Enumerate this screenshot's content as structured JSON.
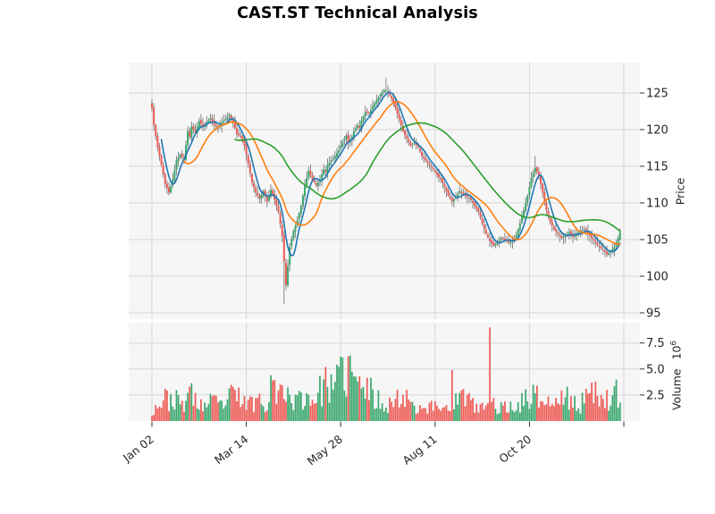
{
  "chart_data": {
    "type": "candlestick+volume_bar",
    "title": "CAST.ST Technical Analysis",
    "ylabel_price": "Price",
    "ylabel_volume": "Volume",
    "volume_exponent_base": "10",
    "volume_exponent_power": "6",
    "price_ticks": [
      95,
      100,
      105,
      110,
      115,
      120,
      125
    ],
    "volume_ticks_millions": [
      "2.5",
      "5.0",
      "7.5"
    ],
    "x_ticks": {
      "days": [
        0,
        50,
        100,
        150,
        200,
        250
      ],
      "labels": [
        "Jan 02",
        "Mar 14",
        "May 28",
        "Aug 11",
        "Oct 20",
        ""
      ]
    },
    "n_days": 249,
    "price_ylim": [
      94,
      129.2
    ],
    "volume_ylim_millions": [
      0,
      9.5
    ],
    "grid": true,
    "first_open": 123.6,
    "close_keypoints": [
      [
        0,
        123.0
      ],
      [
        1,
        120.6
      ],
      [
        3,
        117.6
      ],
      [
        5,
        115.2
      ],
      [
        7,
        112.6
      ],
      [
        9,
        111.4
      ],
      [
        11,
        113.2
      ],
      [
        13,
        115.8
      ],
      [
        15,
        116.6
      ],
      [
        17,
        116.0
      ],
      [
        19,
        119.8
      ],
      [
        20,
        119.0
      ],
      [
        21,
        120.4
      ],
      [
        23,
        119.6
      ],
      [
        25,
        121.2
      ],
      [
        27,
        120.4
      ],
      [
        29,
        121.0
      ],
      [
        31,
        121.6
      ],
      [
        33,
        120.6
      ],
      [
        35,
        120.2
      ],
      [
        37,
        121.0
      ],
      [
        39,
        121.4
      ],
      [
        41,
        122.0
      ],
      [
        43,
        121.0
      ],
      [
        45,
        119.4
      ],
      [
        47,
        119.0
      ],
      [
        49,
        117.8
      ],
      [
        51,
        115.4
      ],
      [
        53,
        112.8
      ],
      [
        55,
        111.4
      ],
      [
        57,
        110.6
      ],
      [
        59,
        111.6
      ],
      [
        61,
        110.2
      ],
      [
        63,
        111.8
      ],
      [
        65,
        110.4
      ],
      [
        67,
        108.8
      ],
      [
        69,
        105.5
      ],
      [
        70,
        102.0
      ],
      [
        71,
        98.8
      ],
      [
        73,
        104.0
      ],
      [
        75,
        106.2
      ],
      [
        77,
        107.6
      ],
      [
        79,
        109.6
      ],
      [
        81,
        112.4
      ],
      [
        83,
        114.4
      ],
      [
        85,
        113.2
      ],
      [
        87,
        112.4
      ],
      [
        89,
        113.2
      ],
      [
        91,
        114.6
      ],
      [
        92,
        114.2
      ],
      [
        93,
        115.2
      ],
      [
        95,
        115.8
      ],
      [
        97,
        116.4
      ],
      [
        99,
        117.2
      ],
      [
        101,
        118.4
      ],
      [
        103,
        119.2
      ],
      [
        104,
        118.2
      ],
      [
        106,
        119.0
      ],
      [
        107,
        119.8
      ],
      [
        109,
        120.6
      ],
      [
        110,
        120.2
      ],
      [
        111,
        121.2
      ],
      [
        113,
        122.4
      ],
      [
        115,
        122.2
      ],
      [
        117,
        123.2
      ],
      [
        119,
        124.0
      ],
      [
        121,
        124.8
      ],
      [
        123,
        125.4
      ],
      [
        125,
        125.2
      ],
      [
        127,
        124.2
      ],
      [
        129,
        123.0
      ],
      [
        131,
        121.4
      ],
      [
        133,
        119.8
      ],
      [
        135,
        118.8
      ],
      [
        137,
        117.8
      ],
      [
        139,
        118.2
      ],
      [
        141,
        117.6
      ],
      [
        143,
        116.4
      ],
      [
        145,
        115.8
      ],
      [
        147,
        115.2
      ],
      [
        149,
        114.6
      ],
      [
        151,
        113.8
      ],
      [
        153,
        113.2
      ],
      [
        155,
        112.2
      ],
      [
        157,
        111.0
      ],
      [
        159,
        110.2
      ],
      [
        161,
        110.8
      ],
      [
        163,
        111.6
      ],
      [
        165,
        111.2
      ],
      [
        167,
        110.8
      ],
      [
        169,
        110.4
      ],
      [
        171,
        109.6
      ],
      [
        173,
        108.8
      ],
      [
        175,
        107.2
      ],
      [
        177,
        105.8
      ],
      [
        179,
        104.8
      ],
      [
        181,
        104.2
      ],
      [
        183,
        104.6
      ],
      [
        185,
        105.2
      ],
      [
        187,
        105.0
      ],
      [
        189,
        104.6
      ],
      [
        191,
        104.8
      ],
      [
        193,
        105.6
      ],
      [
        195,
        107.2
      ],
      [
        197,
        109.0
      ],
      [
        199,
        111.0
      ],
      [
        201,
        113.4
      ],
      [
        203,
        114.8
      ],
      [
        205,
        113.6
      ],
      [
        207,
        111.4
      ],
      [
        209,
        109.0
      ],
      [
        211,
        107.4
      ],
      [
        213,
        106.4
      ],
      [
        215,
        105.8
      ],
      [
        217,
        105.2
      ],
      [
        219,
        105.6
      ],
      [
        221,
        106.0
      ],
      [
        223,
        105.4
      ],
      [
        225,
        105.8
      ],
      [
        227,
        106.2
      ],
      [
        229,
        106.4
      ],
      [
        231,
        105.8
      ],
      [
        233,
        105.2
      ],
      [
        235,
        104.6
      ],
      [
        237,
        104.0
      ],
      [
        239,
        103.6
      ],
      [
        241,
        103.0
      ],
      [
        243,
        103.4
      ],
      [
        245,
        104.0
      ],
      [
        247,
        105.2
      ],
      [
        248,
        106.0
      ]
    ],
    "wick_overrides": {
      "70": {
        "low": 96.2
      },
      "124": {
        "high": 127.1
      },
      "203": {
        "high": 116.4
      }
    },
    "volume_keypoints_millions": [
      [
        0,
        0.9
      ],
      [
        4,
        1.7
      ],
      [
        8,
        2.1
      ],
      [
        12,
        2.0
      ],
      [
        16,
        1.5
      ],
      [
        20,
        2.5
      ],
      [
        24,
        1.7
      ],
      [
        28,
        1.4
      ],
      [
        32,
        1.8
      ],
      [
        36,
        1.4
      ],
      [
        40,
        2.0
      ],
      [
        44,
        2.5
      ],
      [
        48,
        1.8
      ],
      [
        52,
        1.6
      ],
      [
        56,
        2.1
      ],
      [
        60,
        1.7
      ],
      [
        64,
        3.6
      ],
      [
        66,
        3.0
      ],
      [
        68,
        2.3
      ],
      [
        70,
        3.2
      ],
      [
        72,
        2.5
      ],
      [
        76,
        1.8
      ],
      [
        80,
        2.3
      ],
      [
        84,
        2.1
      ],
      [
        88,
        2.5
      ],
      [
        92,
        3.4
      ],
      [
        96,
        2.7
      ],
      [
        100,
        4.2
      ],
      [
        104,
        4.6
      ],
      [
        107,
        3.8
      ],
      [
        110,
        2.6
      ],
      [
        114,
        3.2
      ],
      [
        118,
        2.1
      ],
      [
        122,
        1.8
      ],
      [
        126,
        1.6
      ],
      [
        130,
        2.0
      ],
      [
        134,
        2.5
      ],
      [
        138,
        1.6
      ],
      [
        142,
        1.3
      ],
      [
        146,
        1.2
      ],
      [
        150,
        1.4
      ],
      [
        154,
        1.3
      ],
      [
        158,
        1.6
      ],
      [
        162,
        2.0
      ],
      [
        166,
        2.4
      ],
      [
        170,
        1.4
      ],
      [
        174,
        1.2
      ],
      [
        178,
        1.5
      ],
      [
        182,
        1.5
      ],
      [
        186,
        1.2
      ],
      [
        190,
        1.3
      ],
      [
        194,
        1.6
      ],
      [
        198,
        2.0
      ],
      [
        202,
        2.4
      ],
      [
        206,
        2.0
      ],
      [
        210,
        1.7
      ],
      [
        214,
        1.6
      ],
      [
        218,
        2.2
      ],
      [
        222,
        1.7
      ],
      [
        226,
        1.4
      ],
      [
        230,
        2.1
      ],
      [
        234,
        2.5
      ],
      [
        238,
        2.8
      ],
      [
        242,
        2.1
      ],
      [
        246,
        2.6
      ],
      [
        248,
        1.3
      ]
    ],
    "volume_spikes_millions": {
      "20": 3.3,
      "63": 4.4,
      "64": 3.9,
      "92": 5.2,
      "100": 6.2,
      "105": 6.3,
      "110": 4.3,
      "135": 3.0,
      "159": 4.9,
      "179": 9.0,
      "204": 3.4,
      "220": 3.3,
      "230": 3.1,
      "241": 3.0
    },
    "moving_averages": [
      {
        "name": "ma-short",
        "window": 6,
        "color": "#1f77b4"
      },
      {
        "name": "ma-medium",
        "window": 18,
        "color": "#ff7f0e"
      },
      {
        "name": "ma-long",
        "window": 45,
        "color": "#2ca02c"
      }
    ],
    "colors": {
      "up": "#3aa76d",
      "down": "#ee5a54",
      "wick": "#6b6b6b",
      "plot_bg": "#f6f6f7",
      "grid": "#d6d6d6",
      "figure_bg": "#ffffff",
      "tick_text": "#262626",
      "title_text": "#000000"
    }
  }
}
